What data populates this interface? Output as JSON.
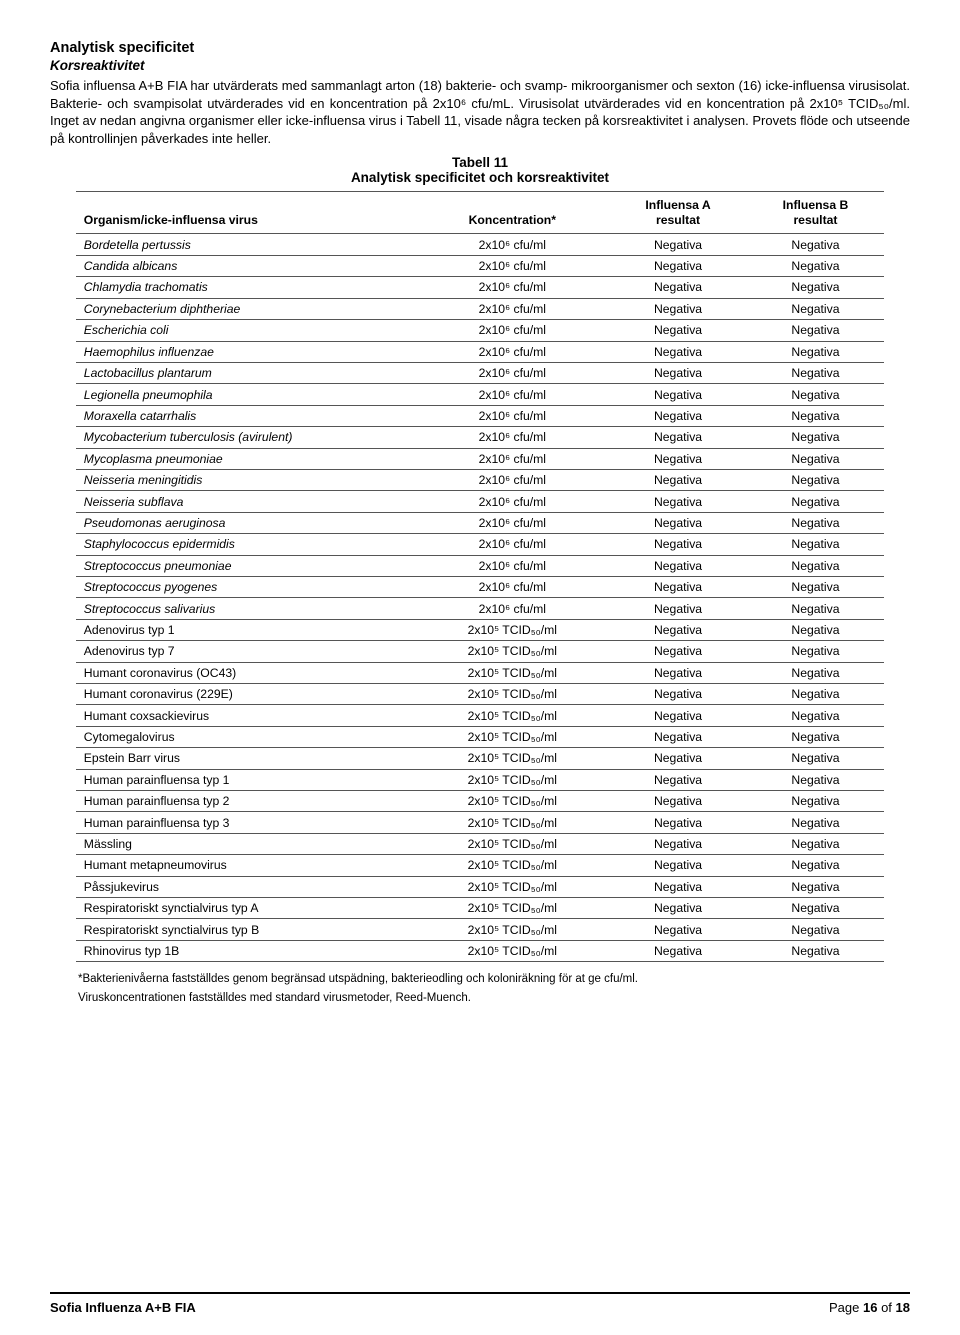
{
  "heading": "Analytisk specificitet",
  "subheading": "Korsreaktivitet",
  "para1": "Sofia influensa A+B FIA har utvärderats med sammanlagt arton (18) bakterie- och svamp- mikroorganismer och sexton (16) icke-influensa virusisolat. Bakterie- och svampisolat utvärderades vid en koncentration på 2x10⁶ cfu/mL. Virusisolat utvärderades vid en koncentration på 2x10⁵ TCID₅₀/ml. Inget av nedan angivna organismer eller icke-influensa virus i Tabell 11, visade några tecken på korsreaktivitet i analysen. Provets flöde och utseende på kontrollinjen påverkades inte heller.",
  "tableTitleLine1": "Tabell 11",
  "tableTitleLine2": "Analytisk specificitet och korsreaktivitet",
  "table": {
    "headers": {
      "org": "Organism/icke-influensa virus",
      "conc": "Koncentration*",
      "resA_l1": "Influensa A",
      "resA_l2": "resultat",
      "resB_l1": "Influensa B",
      "resB_l2": "resultat"
    },
    "rows": [
      {
        "org": "Bordetella pertussis",
        "italic": true,
        "conc": "2x10⁶ cfu/ml",
        "a": "Negativa",
        "b": "Negativa"
      },
      {
        "org": "Candida albicans",
        "italic": true,
        "conc": "2x10⁶ cfu/ml",
        "a": "Negativa",
        "b": "Negativa"
      },
      {
        "org": "Chlamydia trachomatis",
        "italic": true,
        "conc": "2x10⁶ cfu/ml",
        "a": "Negativa",
        "b": "Negativa"
      },
      {
        "org": "Corynebacterium diphtheriae",
        "italic": true,
        "conc": "2x10⁶ cfu/ml",
        "a": "Negativa",
        "b": "Negativa"
      },
      {
        "org": "Escherichia coli",
        "italic": true,
        "conc": "2x10⁶ cfu/ml",
        "a": "Negativa",
        "b": "Negativa"
      },
      {
        "org": "Haemophilus influenzae",
        "italic": true,
        "conc": "2x10⁶ cfu/ml",
        "a": "Negativa",
        "b": "Negativa"
      },
      {
        "org": "Lactobacillus plantarum",
        "italic": true,
        "conc": "2x10⁶ cfu/ml",
        "a": "Negativa",
        "b": "Negativa"
      },
      {
        "org": "Legionella pneumophila",
        "italic": true,
        "conc": "2x10⁶ cfu/ml",
        "a": "Negativa",
        "b": "Negativa"
      },
      {
        "org": "Moraxella catarrhalis",
        "italic": true,
        "conc": "2x10⁶ cfu/ml",
        "a": "Negativa",
        "b": "Negativa"
      },
      {
        "org": "Mycobacterium tuberculosis (avirulent)",
        "italic": true,
        "conc": "2x10⁶ cfu/ml",
        "a": "Negativa",
        "b": "Negativa"
      },
      {
        "org": "Mycoplasma pneumoniae",
        "italic": true,
        "conc": "2x10⁶ cfu/ml",
        "a": "Negativa",
        "b": "Negativa"
      },
      {
        "org": "Neisseria meningitidis",
        "italic": true,
        "conc": "2x10⁶ cfu/ml",
        "a": "Negativa",
        "b": "Negativa"
      },
      {
        "org": "Neisseria subflava",
        "italic": true,
        "conc": "2x10⁶ cfu/ml",
        "a": "Negativa",
        "b": "Negativa"
      },
      {
        "org": "Pseudomonas aeruginosa",
        "italic": true,
        "conc": "2x10⁶ cfu/ml",
        "a": "Negativa",
        "b": "Negativa"
      },
      {
        "org": "Staphylococcus epidermidis",
        "italic": true,
        "conc": "2x10⁶ cfu/ml",
        "a": "Negativa",
        "b": "Negativa"
      },
      {
        "org": "Streptococcus pneumoniae",
        "italic": true,
        "conc": "2x10⁶ cfu/ml",
        "a": "Negativa",
        "b": "Negativa"
      },
      {
        "org": "Streptococcus pyogenes",
        "italic": true,
        "conc": "2x10⁶ cfu/ml",
        "a": "Negativa",
        "b": "Negativa"
      },
      {
        "org": "Streptococcus salivarius",
        "italic": true,
        "conc": "2x10⁶ cfu/ml",
        "a": "Negativa",
        "b": "Negativa"
      },
      {
        "org": "Adenovirus typ 1",
        "italic": false,
        "conc": "2x10⁵ TCID₅₀/ml",
        "a": "Negativa",
        "b": "Negativa"
      },
      {
        "org": "Adenovirus typ 7",
        "italic": false,
        "conc": "2x10⁵ TCID₅₀/ml",
        "a": "Negativa",
        "b": "Negativa"
      },
      {
        "org": "Humant coronavirus (OC43)",
        "italic": false,
        "conc": "2x10⁵ TCID₅₀/ml",
        "a": "Negativa",
        "b": "Negativa"
      },
      {
        "org": "Humant coronavirus (229E)",
        "italic": false,
        "conc": "2x10⁵ TCID₅₀/ml",
        "a": "Negativa",
        "b": "Negativa"
      },
      {
        "org": "Humant coxsackievirus",
        "italic": false,
        "conc": "2x10⁵ TCID₅₀/ml",
        "a": "Negativa",
        "b": "Negativa"
      },
      {
        "org": "Cytomegalovirus",
        "italic": false,
        "conc": "2x10⁵ TCID₅₀/ml",
        "a": "Negativa",
        "b": "Negativa"
      },
      {
        "org": "Epstein Barr virus",
        "italic": false,
        "conc": "2x10⁵ TCID₅₀/ml",
        "a": "Negativa",
        "b": "Negativa"
      },
      {
        "org": "Human parainfluensa typ 1",
        "italic": false,
        "conc": "2x10⁵ TCID₅₀/ml",
        "a": "Negativa",
        "b": "Negativa"
      },
      {
        "org": "Human parainfluensa typ 2",
        "italic": false,
        "conc": "2x10⁵ TCID₅₀/ml",
        "a": "Negativa",
        "b": "Negativa"
      },
      {
        "org": "Human parainfluensa typ 3",
        "italic": false,
        "conc": "2x10⁵ TCID₅₀/ml",
        "a": "Negativa",
        "b": "Negativa"
      },
      {
        "org": "Mässling",
        "italic": false,
        "conc": "2x10⁵ TCID₅₀/ml",
        "a": "Negativa",
        "b": "Negativa"
      },
      {
        "org": "Humant metapneumovirus",
        "italic": false,
        "conc": "2x10⁵ TCID₅₀/ml",
        "a": "Negativa",
        "b": "Negativa"
      },
      {
        "org": "Påssjukevirus",
        "italic": false,
        "conc": "2x10⁵ TCID₅₀/ml",
        "a": "Negativa",
        "b": "Negativa"
      },
      {
        "org": "Respiratoriskt synctialvirus typ A",
        "italic": false,
        "conc": "2x10⁵ TCID₅₀/ml",
        "a": "Negativa",
        "b": "Negativa"
      },
      {
        "org": "Respiratoriskt synctialvirus typ B",
        "italic": false,
        "conc": "2x10⁵ TCID₅₀/ml",
        "a": "Negativa",
        "b": "Negativa"
      },
      {
        "org": "Rhinovirus typ 1B",
        "italic": false,
        "conc": "2x10⁵ TCID₅₀/ml",
        "a": "Negativa",
        "b": "Negativa"
      }
    ]
  },
  "footnote1": "*Bakterienivåerna fastställdes genom begränsad utspädning, bakterieodling och koloniräkning för at ge cfu/ml.",
  "footnote2": "Viruskoncentrationen fastställdes med standard virusmetoder, Reed-Muench.",
  "footer": {
    "left": "Sofia Influenza A+B FIA",
    "right_prefix": "Page ",
    "right_page": "16",
    "right_of": " of ",
    "right_total": "18"
  }
}
